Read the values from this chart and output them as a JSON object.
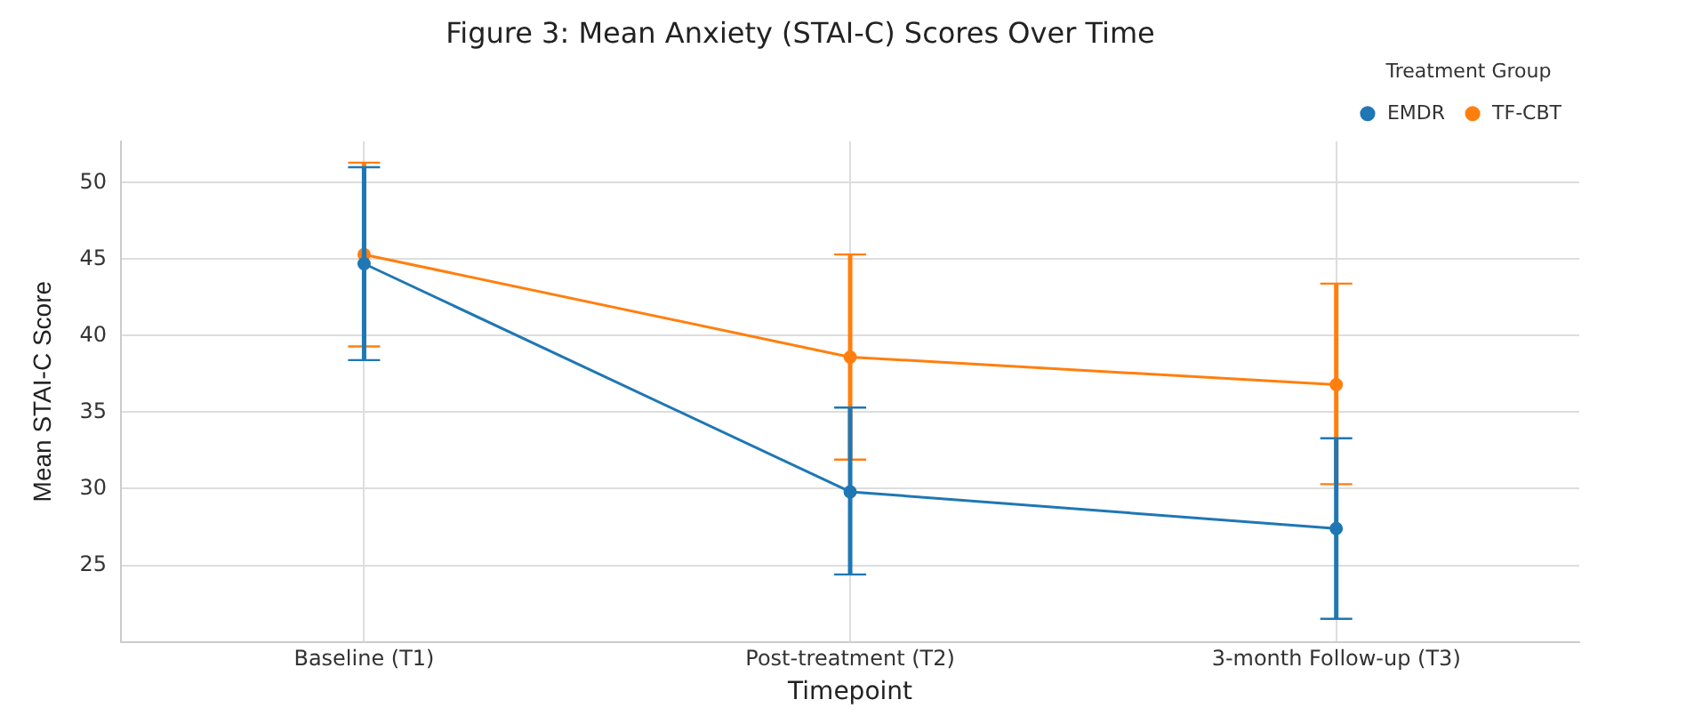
{
  "chart_data": {
    "type": "line",
    "title": "Figure 3: Mean Anxiety (STAI-C) Scores Over Time",
    "xlabel": "Timepoint",
    "ylabel": "Mean STAI-C Score",
    "legend_title": "Treatment Group",
    "categories": [
      "Baseline (T1)",
      "Post-treatment (T2)",
      "3-month Follow-up (T3)"
    ],
    "series": [
      {
        "name": "EMDR",
        "color": "#1f77b4",
        "values": [
          44.7,
          29.8,
          27.4
        ],
        "errors": [
          [
            38.4,
            51.0
          ],
          [
            24.4,
            35.3
          ],
          [
            21.5,
            33.3
          ]
        ]
      },
      {
        "name": "TF-CBT",
        "color": "#ff7f0e",
        "values": [
          45.3,
          38.6,
          36.8
        ],
        "errors": [
          [
            39.3,
            51.3
          ],
          [
            31.9,
            45.3
          ],
          [
            30.3,
            43.4
          ]
        ]
      }
    ],
    "ylim": [
      20,
      52.7
    ],
    "yticks": [
      25,
      30,
      35,
      40,
      45,
      50
    ],
    "grid": true,
    "legend": "top right",
    "marker": "circle",
    "line_style": "solid"
  }
}
